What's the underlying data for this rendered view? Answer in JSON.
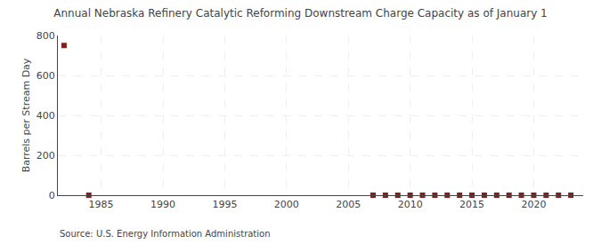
{
  "chart_data": {
    "type": "scatter",
    "title": "Annual Nebraska Refinery Catalytic Reforming Downstream Charge Capacity as of January 1",
    "y_label": "Barrels per Stream Day",
    "annotations": [
      "Source: U.S. Energy Information Administration"
    ],
    "x": [
      1982,
      1984,
      2007,
      2008,
      2009,
      2010,
      2011,
      2012,
      2013,
      2014,
      2015,
      2016,
      2017,
      2018,
      2019,
      2020,
      2021,
      2022,
      2023
    ],
    "values": [
      750,
      0,
      0,
      0,
      0,
      0,
      0,
      0,
      0,
      0,
      0,
      0,
      0,
      0,
      0,
      0,
      0,
      0,
      0
    ],
    "color": "#8b1a1a",
    "marker": "square",
    "xlim": [
      1981.5,
      2024
    ],
    "xticks": [
      1985,
      1990,
      1995,
      2000,
      2005,
      2010,
      2015,
      2020
    ],
    "ylim": [
      0,
      800
    ],
    "yticks": [
      0,
      200,
      400,
      600,
      800
    ],
    "grid": true
  }
}
